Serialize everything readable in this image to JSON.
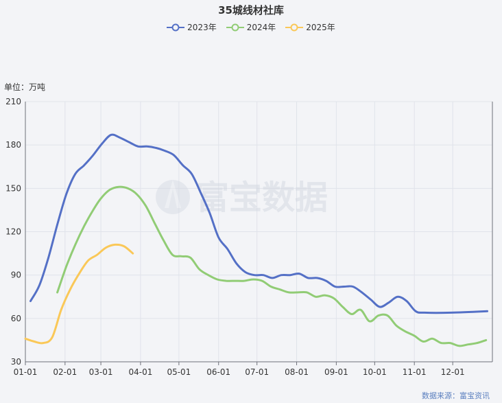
{
  "chart_data": {
    "type": "line",
    "title": "35城线材社库",
    "ylabel": "单位：万吨",
    "ylim": [
      30,
      210
    ],
    "yticks": [
      30,
      60,
      90,
      120,
      150,
      180,
      210
    ],
    "xlim": [
      "01-01",
      "12-31"
    ],
    "xticks": [
      "01-01",
      "02-01",
      "03-01",
      "04-01",
      "05-01",
      "06-01",
      "07-01",
      "08-01",
      "09-01",
      "10-01",
      "11-01",
      "12-01"
    ],
    "grid": true,
    "legend_position": "top",
    "source": "数据来源：富宝资讯",
    "watermark": "富宝数据",
    "series": [
      {
        "name": "2023年",
        "color": "#5470c6",
        "points": [
          [
            "01-05",
            72
          ],
          [
            "01-12",
            83
          ],
          [
            "01-19",
            102
          ],
          [
            "01-26",
            125
          ],
          [
            "02-02",
            146
          ],
          [
            "02-09",
            160
          ],
          [
            "02-16",
            166
          ],
          [
            "02-23",
            173
          ],
          [
            "03-02",
            181
          ],
          [
            "03-09",
            187
          ],
          [
            "03-16",
            185
          ],
          [
            "03-23",
            182
          ],
          [
            "03-30",
            179
          ],
          [
            "04-06",
            179
          ],
          [
            "04-13",
            178
          ],
          [
            "04-20",
            176
          ],
          [
            "04-27",
            173
          ],
          [
            "05-04",
            166
          ],
          [
            "05-11",
            160
          ],
          [
            "05-18",
            147
          ],
          [
            "05-25",
            133
          ],
          [
            "06-01",
            116
          ],
          [
            "06-08",
            108
          ],
          [
            "06-15",
            98
          ],
          [
            "06-22",
            92
          ],
          [
            "06-29",
            90
          ],
          [
            "07-06",
            90
          ],
          [
            "07-13",
            88
          ],
          [
            "07-20",
            90
          ],
          [
            "07-27",
            90
          ],
          [
            "08-03",
            91
          ],
          [
            "08-10",
            88
          ],
          [
            "08-17",
            88
          ],
          [
            "08-24",
            86
          ],
          [
            "08-31",
            82
          ],
          [
            "09-07",
            82
          ],
          [
            "09-14",
            82
          ],
          [
            "09-21",
            78
          ],
          [
            "09-28",
            73
          ],
          [
            "10-05",
            68
          ],
          [
            "10-12",
            71
          ],
          [
            "10-19",
            75
          ],
          [
            "10-26",
            72
          ],
          [
            "11-02",
            65
          ],
          [
            "11-09",
            64
          ],
          [
            "11-30",
            64
          ],
          [
            "12-28",
            65
          ]
        ]
      },
      {
        "name": "2024年",
        "color": "#91cc75",
        "points": [
          [
            "01-26",
            78
          ],
          [
            "02-02",
            96
          ],
          [
            "02-09",
            111
          ],
          [
            "02-16",
            124
          ],
          [
            "02-23",
            135
          ],
          [
            "03-01",
            143
          ],
          [
            "03-08",
            149
          ],
          [
            "03-15",
            151
          ],
          [
            "03-22",
            150
          ],
          [
            "03-29",
            146
          ],
          [
            "04-05",
            138
          ],
          [
            "04-12",
            126
          ],
          [
            "04-19",
            114
          ],
          [
            "04-26",
            104
          ],
          [
            "05-03",
            103
          ],
          [
            "05-10",
            102
          ],
          [
            "05-17",
            94
          ],
          [
            "05-24",
            90
          ],
          [
            "05-31",
            87
          ],
          [
            "06-07",
            86
          ],
          [
            "06-14",
            86
          ],
          [
            "06-21",
            86
          ],
          [
            "06-28",
            87
          ],
          [
            "07-05",
            86
          ],
          [
            "07-12",
            82
          ],
          [
            "07-19",
            80
          ],
          [
            "07-26",
            78
          ],
          [
            "08-02",
            78
          ],
          [
            "08-09",
            78
          ],
          [
            "08-16",
            75
          ],
          [
            "08-23",
            76
          ],
          [
            "08-30",
            74
          ],
          [
            "09-06",
            68
          ],
          [
            "09-13",
            63
          ],
          [
            "09-20",
            66
          ],
          [
            "09-27",
            58
          ],
          [
            "10-04",
            62
          ],
          [
            "10-11",
            62
          ],
          [
            "10-18",
            55
          ],
          [
            "10-25",
            51
          ],
          [
            "11-01",
            48
          ],
          [
            "11-08",
            44
          ],
          [
            "11-15",
            46
          ],
          [
            "11-22",
            43
          ],
          [
            "11-29",
            43
          ],
          [
            "12-06",
            41
          ],
          [
            "12-13",
            42
          ],
          [
            "12-20",
            43
          ],
          [
            "12-27",
            45
          ]
        ]
      },
      {
        "name": "2025年",
        "color": "#fac858",
        "points": [
          [
            "01-01",
            46
          ],
          [
            "01-08",
            44
          ],
          [
            "01-15",
            43
          ],
          [
            "01-22",
            47
          ],
          [
            "01-29",
            66
          ],
          [
            "02-05",
            80
          ],
          [
            "02-12",
            91
          ],
          [
            "02-19",
            100
          ],
          [
            "02-26",
            104
          ],
          [
            "03-05",
            109
          ],
          [
            "03-12",
            111
          ],
          [
            "03-19",
            110
          ],
          [
            "03-26",
            105
          ]
        ]
      }
    ]
  }
}
